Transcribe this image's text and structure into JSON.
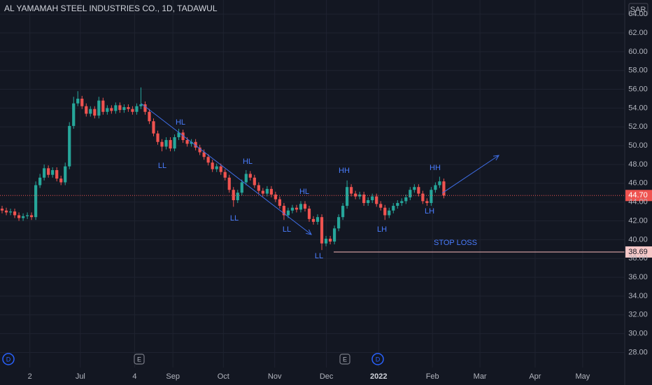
{
  "chart_data": {
    "type": "candlestick",
    "title": "AL YAMAMAH STEEL INDUSTRIES CO., 1D, TADAWUL",
    "currency": "SAR",
    "up_color": "#26a69a",
    "down_color": "#ef5350",
    "grid": true,
    "xlim": [
      -0.5,
      148
    ],
    "xticks": [
      {
        "value": 6.6,
        "label": "2"
      },
      {
        "value": 18.6,
        "label": "Jul"
      },
      {
        "value": 31.5,
        "label": "4"
      },
      {
        "value": 40.6,
        "label": "Sep"
      },
      {
        "value": 52.6,
        "label": "Oct"
      },
      {
        "value": 64.8,
        "label": "Nov"
      },
      {
        "value": 77.1,
        "label": "Dec"
      },
      {
        "value": 89.5,
        "label": "2022"
      },
      {
        "value": 102.3,
        "label": "Feb"
      },
      {
        "value": 113.6,
        "label": "Mar"
      },
      {
        "value": 126.7,
        "label": "Apr"
      },
      {
        "value": 138,
        "label": "May"
      }
    ],
    "ylim": [
      26.4,
      65.5
    ],
    "yticks": [
      {
        "value": 28,
        "label": "28.00"
      },
      {
        "value": 30,
        "label": "30.00"
      },
      {
        "value": 32,
        "label": "32.00"
      },
      {
        "value": 34,
        "label": "34.00"
      },
      {
        "value": 36,
        "label": "36.00"
      },
      {
        "value": 38,
        "label": "38.00"
      },
      {
        "value": 40,
        "label": "40.00"
      },
      {
        "value": 42,
        "label": "42.00"
      },
      {
        "value": 44,
        "label": "44.00"
      },
      {
        "value": 46,
        "label": "46.00"
      },
      {
        "value": 48,
        "label": "48.00"
      },
      {
        "value": 50,
        "label": "50.00"
      },
      {
        "value": 52,
        "label": "52.00"
      },
      {
        "value": 54,
        "label": "54.00"
      },
      {
        "value": 56,
        "label": "56.00"
      },
      {
        "value": 58,
        "label": "58.00"
      },
      {
        "value": 60,
        "label": "60.00"
      },
      {
        "value": 62,
        "label": "62.00"
      },
      {
        "value": 64,
        "label": "64.00"
      }
    ],
    "x": [
      0,
      1,
      2,
      3,
      4,
      5,
      6,
      7,
      8,
      9,
      10,
      11,
      12,
      13,
      14,
      15,
      16,
      17,
      18,
      19,
      20,
      21,
      22,
      23,
      24,
      25,
      26,
      27,
      28,
      29,
      30,
      31,
      32,
      33,
      34,
      35,
      36,
      37,
      38,
      39,
      40,
      41,
      42,
      43,
      44,
      45,
      46,
      47,
      48,
      49,
      50,
      51,
      52,
      53,
      54,
      55,
      56,
      57,
      58,
      59,
      60,
      61,
      62,
      63,
      64,
      65,
      66,
      67,
      68,
      69,
      70,
      71,
      72,
      73,
      74,
      75,
      76,
      77,
      78,
      79,
      80,
      81,
      82,
      83,
      84,
      85,
      86,
      87,
      88,
      89,
      90,
      91,
      92,
      93,
      94,
      95,
      96,
      97,
      98,
      99,
      100,
      101,
      102,
      103,
      104,
      105
    ],
    "open": [
      43.3,
      43.1,
      42.9,
      43.0,
      42.6,
      42.3,
      42.5,
      42.6,
      42.4,
      45.8,
      46.6,
      47.6,
      46.9,
      47.4,
      46.5,
      46.1,
      47.8,
      52.1,
      54.5,
      55.0,
      54.2,
      53.4,
      53.9,
      53.2,
      54.8,
      53.6,
      54.0,
      53.7,
      54.3,
      53.8,
      54.1,
      53.9,
      53.6,
      54.2,
      54.4,
      53.6,
      52.6,
      51.3,
      50.4,
      49.9,
      50.6,
      49.7,
      50.9,
      51.4,
      50.6,
      50.2,
      50.4,
      49.8,
      49.3,
      48.8,
      48.2,
      47.5,
      47.8,
      47.2,
      46.6,
      45.3,
      44.2,
      45.0,
      46.1,
      47.0,
      46.6,
      45.8,
      45.2,
      44.9,
      45.4,
      44.8,
      44.3,
      43.6,
      42.6,
      43.1,
      43.4,
      43.2,
      43.8,
      43.3,
      42.2,
      41.9,
      42.4,
      39.6,
      40.1,
      39.8,
      41.2,
      42.4,
      43.6,
      45.6,
      44.9,
      44.6,
      44.8,
      43.9,
      44.2,
      44.6,
      43.8,
      43.4,
      42.6,
      43.1,
      43.6,
      43.9,
      44.1,
      44.5,
      45.3,
      45.6,
      44.9,
      44.1,
      43.9,
      45.3,
      45.8,
      46.2
    ],
    "high": [
      43.6,
      43.4,
      43.3,
      43.3,
      42.9,
      42.8,
      42.9,
      42.9,
      46.2,
      47.0,
      48.0,
      47.9,
      47.7,
      47.7,
      46.8,
      48.2,
      52.5,
      55.2,
      55.8,
      55.3,
      54.5,
      54.2,
      54.2,
      55.2,
      55.1,
      54.3,
      54.3,
      54.6,
      54.6,
      54.4,
      54.4,
      54.2,
      54.5,
      56.2,
      54.7,
      53.9,
      52.9,
      51.6,
      50.7,
      50.9,
      50.9,
      51.2,
      51.8,
      51.7,
      50.9,
      50.7,
      50.7,
      50.1,
      49.6,
      49.1,
      48.5,
      48.1,
      48.1,
      47.5,
      46.9,
      45.6,
      45.3,
      46.4,
      47.4,
      47.3,
      46.9,
      46.1,
      45.5,
      45.7,
      45.7,
      45.1,
      44.6,
      43.9,
      43.4,
      43.7,
      43.7,
      44.1,
      44.1,
      43.6,
      42.5,
      42.7,
      42.7,
      40.4,
      40.4,
      41.5,
      42.7,
      43.9,
      46.3,
      45.9,
      45.2,
      45.1,
      45.1,
      44.5,
      44.9,
      44.9,
      44.1,
      43.7,
      43.4,
      43.9,
      44.2,
      44.4,
      44.8,
      45.6,
      45.9,
      45.9,
      45.2,
      44.4,
      45.6,
      46.1,
      46.7,
      46.5
    ],
    "low": [
      42.8,
      42.6,
      42.6,
      42.3,
      42.0,
      42.0,
      42.2,
      42.1,
      42.1,
      45.5,
      46.3,
      46.6,
      46.6,
      46.2,
      45.8,
      45.8,
      47.5,
      51.8,
      54.2,
      53.9,
      53.1,
      53.1,
      52.9,
      52.9,
      53.3,
      53.3,
      53.4,
      53.4,
      53.5,
      53.5,
      53.6,
      53.3,
      53.3,
      53.9,
      53.3,
      52.3,
      51.0,
      50.1,
      49.4,
      49.6,
      49.4,
      49.4,
      50.6,
      50.3,
      49.9,
      49.9,
      49.5,
      49.0,
      48.5,
      47.9,
      47.2,
      47.2,
      46.9,
      46.3,
      45.0,
      43.5,
      43.9,
      44.7,
      45.8,
      46.3,
      45.5,
      44.9,
      44.6,
      44.6,
      44.5,
      44.0,
      43.3,
      42.1,
      42.3,
      42.8,
      42.9,
      42.9,
      43.0,
      41.9,
      41.6,
      41.6,
      38.9,
      39.3,
      39.5,
      39.5,
      40.9,
      42.1,
      43.3,
      44.6,
      44.3,
      44.3,
      43.6,
      43.6,
      43.9,
      43.5,
      43.1,
      42.1,
      42.3,
      42.8,
      43.3,
      43.6,
      43.8,
      44.2,
      45.0,
      44.6,
      43.8,
      43.6,
      43.6,
      45.0,
      45.5,
      44.4
    ],
    "close": [
      43.1,
      42.9,
      43.0,
      42.6,
      42.3,
      42.5,
      42.6,
      42.4,
      45.8,
      46.6,
      47.6,
      46.9,
      47.4,
      46.5,
      46.1,
      47.8,
      52.1,
      54.5,
      55.0,
      54.2,
      53.4,
      53.9,
      53.2,
      54.8,
      53.6,
      54.0,
      53.7,
      54.3,
      53.8,
      54.1,
      53.9,
      53.6,
      54.2,
      54.4,
      53.6,
      52.6,
      51.3,
      50.4,
      49.9,
      50.6,
      49.7,
      50.9,
      51.4,
      50.6,
      50.2,
      50.4,
      49.8,
      49.3,
      48.8,
      48.2,
      47.5,
      47.8,
      47.2,
      46.6,
      45.3,
      44.2,
      45.0,
      46.1,
      47.0,
      46.6,
      45.8,
      45.2,
      44.9,
      45.4,
      44.8,
      44.3,
      43.6,
      42.6,
      43.1,
      43.4,
      43.2,
      43.8,
      43.3,
      42.2,
      41.9,
      42.4,
      39.6,
      40.1,
      39.8,
      41.2,
      42.4,
      43.6,
      45.6,
      44.9,
      44.6,
      44.8,
      43.9,
      44.2,
      44.6,
      43.8,
      43.4,
      42.6,
      43.1,
      43.6,
      43.9,
      44.1,
      44.5,
      45.3,
      45.6,
      44.9,
      44.1,
      43.9,
      45.3,
      45.8,
      46.2,
      44.7
    ],
    "last_price": {
      "value": 44.7,
      "label": "44.70"
    },
    "stop_loss": {
      "value": 38.69,
      "label": "38.69",
      "text": "STOP LOSS"
    },
    "annotations": [
      "HL",
      "LL",
      "HL",
      "LL",
      "HL",
      "LL",
      "LL",
      "HH",
      "LH",
      "HH",
      "LH"
    ],
    "events": [
      "D",
      "E",
      "E",
      "D"
    ]
  }
}
